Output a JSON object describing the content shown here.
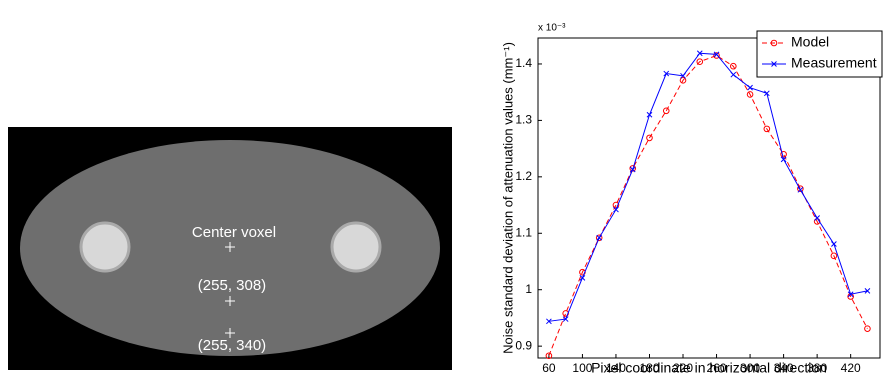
{
  "image": {
    "labels": [
      "Center voxel",
      "(255, 308)",
      "(255, 340)"
    ]
  },
  "chart_data": {
    "type": "line",
    "y_label": "Noise standard deviation of attenuation values (mm⁻¹)",
    "y_exponent": "x 10⁻³",
    "x_label": "Pixel coordinate in horizontal direction",
    "x": [
      60,
      80,
      100,
      120,
      140,
      160,
      180,
      200,
      220,
      240,
      260,
      280,
      300,
      320,
      340,
      360,
      380,
      400,
      420,
      440
    ],
    "series": [
      {
        "name": "Model",
        "color": "#ff0000",
        "marker": "o",
        "linestyle": "--",
        "values": [
          0.883,
          0.958,
          1.031,
          1.092,
          1.15,
          1.215,
          1.269,
          1.317,
          1.371,
          1.404,
          1.415,
          1.396,
          1.346,
          1.285,
          1.24,
          1.179,
          1.121,
          1.06,
          0.988,
          0.931
        ]
      },
      {
        "name": "Measurement",
        "color": "#0000ff",
        "marker": "x",
        "linestyle": "-",
        "values": [
          0.944,
          0.948,
          1.021,
          1.092,
          1.142,
          1.213,
          1.31,
          1.383,
          1.379,
          1.419,
          1.417,
          1.381,
          1.358,
          1.348,
          1.231,
          1.177,
          1.127,
          1.081,
          0.992,
          0.998
        ]
      }
    ],
    "xlim": [
      47,
      455
    ],
    "ylim": [
      0.879,
      1.446
    ],
    "xticks": [
      60,
      100,
      140,
      180,
      220,
      260,
      300,
      340,
      380,
      420
    ],
    "yticks": [
      0.9,
      1,
      1.1,
      1.2,
      1.3,
      1.4
    ],
    "legend": "upper right"
  }
}
